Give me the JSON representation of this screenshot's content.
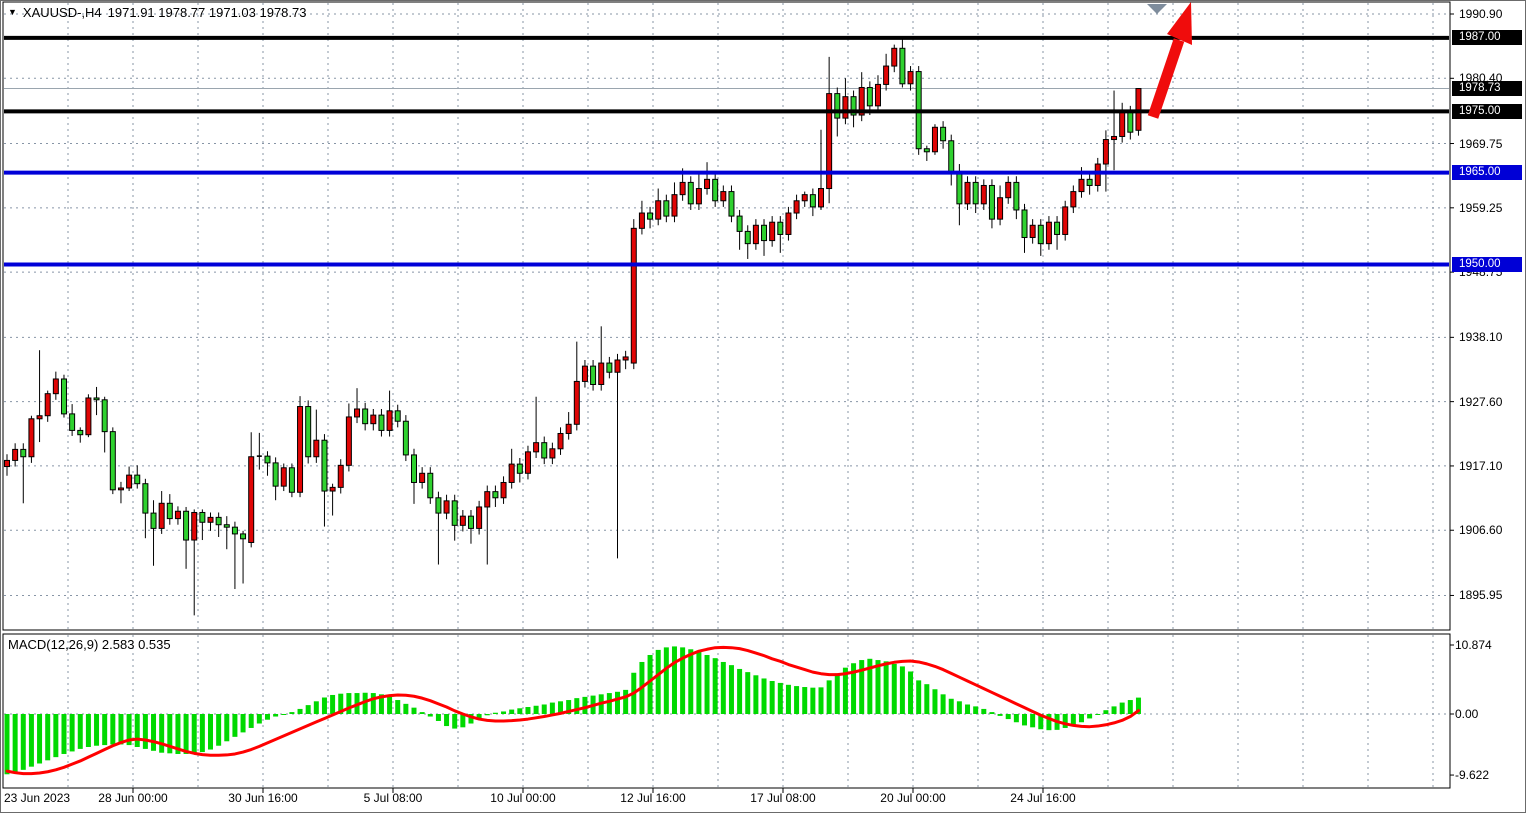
{
  "header": {
    "dropdown_icon": "down-triangle",
    "symbol_period": "XAUUSD-,H4",
    "ohlc_text": "1971.91 1978.77 1971.03 1978.73"
  },
  "macd_panel": {
    "label": "MACD(12,26,9) 2.583 0.535",
    "axis_tick_labels": [
      "10.874",
      "0.00",
      "-9.622"
    ]
  },
  "price_axis": {
    "badges": [
      {
        "label": "1987.00",
        "value": 1987.0,
        "bg": "#000000"
      },
      {
        "label": "1978.73",
        "value": 1978.73,
        "bg": "#000000"
      },
      {
        "label": "1975.00",
        "value": 1975.0,
        "bg": "#000000"
      },
      {
        "label": "1965.00",
        "value": 1965.0,
        "bg": "#0000d6"
      },
      {
        "label": "1950.00",
        "value": 1950.0,
        "bg": "#0000d6"
      }
    ]
  },
  "colors": {
    "up_candle": "#e00505",
    "down_candle": "#2fd12f",
    "candle_border": "#000000",
    "grid": "#8795a6",
    "macd_hist": "#00d900",
    "macd_signal": "#ff0000",
    "black_level": "#000000",
    "blue_level": "#0000d8",
    "bid_line": "#9aa5ae",
    "arrow": "#f00c0c",
    "shift_marker": "#7e8c9c"
  },
  "chart_data": [
    {
      "type": "candlestick",
      "title": "XAUUSD-,H4",
      "last_ohlc": {
        "open": 1971.91,
        "high": 1978.77,
        "low": 1971.03,
        "close": 1978.73
      },
      "y_ticks": [
        1990.9,
        1980.4,
        1969.75,
        1959.25,
        1948.75,
        1938.1,
        1927.6,
        1917.1,
        1906.6,
        1895.95
      ],
      "x_tick_labels": [
        "23 Jun 2023",
        "28 Jun 00:00",
        "30 Jun 16:00",
        "5 Jul 08:00",
        "10 Jul 00:00",
        "12 Jul 16:00",
        "17 Jul 08:00",
        "20 Jul 00:00",
        "24 Jul 16:00"
      ],
      "hlines": [
        {
          "value": 1987.0,
          "color": "#000000"
        },
        {
          "value": 1975.0,
          "color": "#000000"
        },
        {
          "value": 1965.0,
          "color": "#0000d8"
        },
        {
          "value": 1950.0,
          "color": "#0000d8"
        }
      ],
      "current_price": 1978.73,
      "annotations": [
        {
          "type": "up-arrow",
          "color": "#f00c0c"
        }
      ],
      "candles": [
        [
          1917.0,
          1919.0,
          1915.5,
          1918.0
        ],
        [
          1918.0,
          1920.8,
          1917.0,
          1919.8
        ],
        [
          1919.8,
          1920.8,
          1911.0,
          1918.6
        ],
        [
          1918.6,
          1925.3,
          1917.6,
          1924.8
        ],
        [
          1924.8,
          1936.0,
          1921.0,
          1925.3
        ],
        [
          1925.3,
          1929.4,
          1924.3,
          1928.9
        ],
        [
          1928.9,
          1932.5,
          1927.9,
          1931.3
        ],
        [
          1931.3,
          1932.0,
          1925.0,
          1925.6
        ],
        [
          1925.6,
          1927.2,
          1922.0,
          1922.9
        ],
        [
          1922.9,
          1923.4,
          1920.9,
          1922.2
        ],
        [
          1922.2,
          1928.8,
          1921.8,
          1928.2
        ],
        [
          1928.2,
          1930.0,
          1925.4,
          1927.9
        ],
        [
          1927.9,
          1928.4,
          1919.3,
          1922.7
        ],
        [
          1922.7,
          1923.4,
          1912.5,
          1913.2
        ],
        [
          1913.2,
          1914.5,
          1911.0,
          1913.5
        ],
        [
          1913.5,
          1917.0,
          1913.0,
          1915.6
        ],
        [
          1915.6,
          1917.2,
          1913.4,
          1914.2
        ],
        [
          1914.2,
          1915.0,
          1905.3,
          1909.4
        ],
        [
          1909.4,
          1911.5,
          1900.8,
          1906.9
        ],
        [
          1906.9,
          1913.0,
          1906.0,
          1911.0
        ],
        [
          1911.0,
          1912.5,
          1907.5,
          1908.5
        ],
        [
          1908.5,
          1910.5,
          1907.5,
          1909.7
        ],
        [
          1909.7,
          1910.4,
          1900.3,
          1905.0
        ],
        [
          1905.0,
          1910.0,
          1892.7,
          1909.5
        ],
        [
          1909.5,
          1910.0,
          1905.0,
          1907.9
        ],
        [
          1907.9,
          1909.5,
          1906.5,
          1908.7
        ],
        [
          1908.7,
          1909.5,
          1905.5,
          1907.5
        ],
        [
          1907.5,
          1908.9,
          1903.5,
          1907.1
        ],
        [
          1907.1,
          1908.0,
          1897.0,
          1906.0
        ],
        [
          1906.0,
          1906.5,
          1897.9,
          1905.2
        ],
        [
          1904.6,
          1922.6,
          1903.8,
          1918.6
        ],
        [
          1918.6,
          1922.5,
          1916.5,
          1918.7
        ],
        [
          1918.7,
          1919.5,
          1915.5,
          1917.6
        ],
        [
          1917.6,
          1918.5,
          1911.5,
          1913.8
        ],
        [
          1913.8,
          1917.5,
          1913.0,
          1916.8
        ],
        [
          1916.8,
          1917.5,
          1912.0,
          1912.8
        ],
        [
          1912.8,
          1928.5,
          1912.0,
          1926.8
        ],
        [
          1926.8,
          1927.8,
          1917.5,
          1918.6
        ],
        [
          1918.6,
          1926.3,
          1917.6,
          1921.3
        ],
        [
          1921.3,
          1922.3,
          1907.2,
          1913.0
        ],
        [
          1913.0,
          1914.2,
          1909.0,
          1913.6
        ],
        [
          1913.6,
          1918.2,
          1912.6,
          1917.2
        ],
        [
          1917.2,
          1927.3,
          1916.2,
          1925.1
        ],
        [
          1925.1,
          1929.8,
          1924.1,
          1926.4
        ],
        [
          1926.4,
          1927.4,
          1922.9,
          1924.0
        ],
        [
          1924.0,
          1926.4,
          1922.9,
          1925.4
        ],
        [
          1925.4,
          1926.4,
          1921.9,
          1922.9
        ],
        [
          1922.9,
          1929.4,
          1921.9,
          1926.1
        ],
        [
          1926.1,
          1927.1,
          1923.4,
          1924.4
        ],
        [
          1924.4,
          1925.4,
          1917.9,
          1918.9
        ],
        [
          1918.9,
          1919.9,
          1910.9,
          1914.4
        ],
        [
          1914.4,
          1916.9,
          1913.4,
          1915.9
        ],
        [
          1915.9,
          1916.9,
          1910.9,
          1911.9
        ],
        [
          1911.9,
          1912.9,
          1901.0,
          1909.4
        ],
        [
          1909.4,
          1912.4,
          1908.4,
          1911.4
        ],
        [
          1911.4,
          1912.4,
          1904.9,
          1907.4
        ],
        [
          1907.4,
          1909.9,
          1906.4,
          1908.9
        ],
        [
          1908.9,
          1909.9,
          1904.4,
          1906.9
        ],
        [
          1906.9,
          1911.4,
          1905.9,
          1910.4
        ],
        [
          1910.4,
          1913.9,
          1901.0,
          1912.9
        ],
        [
          1912.9,
          1913.9,
          1910.4,
          1911.9
        ],
        [
          1911.9,
          1915.4,
          1910.9,
          1914.4
        ],
        [
          1914.4,
          1919.9,
          1913.4,
          1917.4
        ],
        [
          1917.4,
          1918.4,
          1914.4,
          1915.9
        ],
        [
          1915.9,
          1920.4,
          1914.9,
          1919.4
        ],
        [
          1919.4,
          1928.4,
          1918.4,
          1920.9
        ],
        [
          1920.9,
          1921.9,
          1917.4,
          1918.4
        ],
        [
          1918.4,
          1920.9,
          1917.4,
          1919.9
        ],
        [
          1919.9,
          1923.4,
          1918.9,
          1922.4
        ],
        [
          1922.4,
          1925.9,
          1921.4,
          1923.9
        ],
        [
          1923.9,
          1937.4,
          1922.9,
          1930.9
        ],
        [
          1930.9,
          1934.4,
          1929.9,
          1933.4
        ],
        [
          1933.4,
          1934.4,
          1929.4,
          1930.4
        ],
        [
          1930.4,
          1939.9,
          1929.4,
          1933.9
        ],
        [
          1933.9,
          1934.9,
          1931.4,
          1932.4
        ],
        [
          1932.4,
          1935.4,
          1902.0,
          1934.4
        ],
        [
          1934.4,
          1935.9,
          1932.9,
          1934.9
        ],
        [
          1933.9,
          1957.4,
          1932.9,
          1955.9
        ],
        [
          1955.9,
          1960.4,
          1954.9,
          1958.4
        ],
        [
          1958.4,
          1959.4,
          1955.9,
          1957.4
        ],
        [
          1957.4,
          1962.4,
          1956.4,
          1960.4
        ],
        [
          1960.4,
          1961.4,
          1956.9,
          1957.9
        ],
        [
          1957.9,
          1963.4,
          1956.9,
          1961.4
        ],
        [
          1961.4,
          1965.7,
          1960.4,
          1963.4
        ],
        [
          1963.4,
          1964.4,
          1958.9,
          1959.9
        ],
        [
          1959.9,
          1964.9,
          1958.9,
          1962.4
        ],
        [
          1962.4,
          1966.7,
          1961.4,
          1963.9
        ],
        [
          1963.9,
          1964.9,
          1959.4,
          1960.4
        ],
        [
          1960.4,
          1962.9,
          1959.4,
          1961.9
        ],
        [
          1961.9,
          1962.9,
          1956.9,
          1957.9
        ],
        [
          1957.9,
          1958.9,
          1952.4,
          1955.4
        ],
        [
          1955.4,
          1956.4,
          1950.9,
          1953.4
        ],
        [
          1953.4,
          1957.4,
          1952.4,
          1956.4
        ],
        [
          1956.4,
          1957.4,
          1951.4,
          1953.9
        ],
        [
          1953.9,
          1957.9,
          1952.9,
          1956.9
        ],
        [
          1956.9,
          1957.9,
          1951.9,
          1954.9
        ],
        [
          1954.9,
          1959.4,
          1953.9,
          1958.4
        ],
        [
          1958.4,
          1961.4,
          1957.4,
          1960.4
        ],
        [
          1960.4,
          1961.9,
          1959.4,
          1961.4
        ],
        [
          1961.4,
          1962.4,
          1957.9,
          1959.4
        ],
        [
          1959.4,
          1972.0,
          1958.9,
          1962.4
        ],
        [
          1962.4,
          1983.9,
          1960.0,
          1977.9
        ],
        [
          1977.9,
          1978.9,
          1970.9,
          1973.9
        ],
        [
          1973.9,
          1980.4,
          1972.9,
          1977.4
        ],
        [
          1977.4,
          1978.4,
          1972.4,
          1974.4
        ],
        [
          1974.4,
          1981.4,
          1973.4,
          1978.9
        ],
        [
          1978.9,
          1979.9,
          1974.4,
          1975.9
        ],
        [
          1975.9,
          1980.9,
          1974.9,
          1979.4
        ],
        [
          1979.4,
          1984.4,
          1978.4,
          1982.4
        ],
        [
          1982.4,
          1985.9,
          1981.4,
          1985.3
        ],
        [
          1985.3,
          1987.3,
          1978.9,
          1979.5
        ],
        [
          1979.5,
          1982.4,
          1978.4,
          1981.5
        ],
        [
          1981.5,
          1982.4,
          1967.9,
          1968.9
        ],
        [
          1968.9,
          1969.4,
          1966.9,
          1968.4
        ],
        [
          1968.4,
          1972.9,
          1967.9,
          1972.4
        ],
        [
          1972.4,
          1973.4,
          1968.9,
          1970.2
        ],
        [
          1970.2,
          1971.2,
          1962.9,
          1964.8
        ],
        [
          1964.8,
          1966.4,
          1956.4,
          1959.9
        ],
        [
          1959.9,
          1964.4,
          1958.9,
          1963.4
        ],
        [
          1963.4,
          1964.4,
          1958.4,
          1959.9
        ],
        [
          1959.9,
          1963.9,
          1958.9,
          1962.9
        ],
        [
          1962.9,
          1963.9,
          1955.9,
          1957.4
        ],
        [
          1957.4,
          1962.9,
          1956.4,
          1960.9
        ],
        [
          1960.9,
          1964.4,
          1959.9,
          1963.4
        ],
        [
          1963.4,
          1964.4,
          1957.4,
          1958.9
        ],
        [
          1958.9,
          1959.9,
          1951.9,
          1954.4
        ],
        [
          1954.4,
          1957.4,
          1953.4,
          1956.4
        ],
        [
          1956.4,
          1957.4,
          1951.4,
          1953.4
        ],
        [
          1953.4,
          1957.9,
          1952.4,
          1956.9
        ],
        [
          1956.9,
          1957.9,
          1952.4,
          1954.9
        ],
        [
          1954.9,
          1960.4,
          1953.9,
          1959.4
        ],
        [
          1959.4,
          1962.9,
          1958.4,
          1961.9
        ],
        [
          1961.9,
          1965.9,
          1960.9,
          1963.9
        ],
        [
          1963.9,
          1964.9,
          1961.4,
          1962.9
        ],
        [
          1962.9,
          1967.4,
          1961.9,
          1966.4
        ],
        [
          1966.4,
          1971.9,
          1961.9,
          1970.4
        ],
        [
          1970.4,
          1978.4,
          1965.4,
          1970.9
        ],
        [
          1970.9,
          1976.4,
          1969.9,
          1974.9
        ],
        [
          1974.9,
          1975.9,
          1970.4,
          1971.6
        ],
        [
          1971.91,
          1978.77,
          1971.03,
          1978.73
        ]
      ]
    },
    {
      "type": "bar+line",
      "title": "MACD(12,26,9)",
      "current_values": [
        2.583,
        0.535
      ],
      "y_ticks": [
        10.874,
        0.0,
        -9.622
      ],
      "histogram": [
        -9.5,
        -9.2,
        -8.8,
        -8.3,
        -7.8,
        -7.3,
        -6.8,
        -6.3,
        -5.9,
        -5.5,
        -5.2,
        -5.0,
        -4.9,
        -4.8,
        -4.8,
        -4.9,
        -5.2,
        -5.5,
        -5.8,
        -6.1,
        -6.2,
        -6.3,
        -6.3,
        -6.2,
        -6.0,
        -5.6,
        -5.0,
        -4.3,
        -3.6,
        -2.9,
        -2.2,
        -1.5,
        -0.9,
        -0.4,
        -0.1,
        0.3,
        0.8,
        1.4,
        2.0,
        2.6,
        3.0,
        3.2,
        3.3,
        3.3,
        3.35,
        3.3,
        3.1,
        2.7,
        2.2,
        1.6,
        1.0,
        0.3,
        -0.4,
        -1.1,
        -1.9,
        -2.3,
        -2.1,
        -1.5,
        -0.8,
        -0.2,
        0.2,
        0.4,
        0.7,
        0.9,
        1.1,
        1.3,
        1.5,
        1.8,
        2.0,
        2.2,
        2.5,
        2.7,
        2.9,
        3.1,
        3.3,
        3.5,
        3.8,
        6.5,
        8.2,
        9.3,
        10.1,
        10.5,
        10.65,
        10.5,
        10.2,
        9.8,
        9.3,
        8.8,
        8.2,
        7.7,
        7.1,
        6.6,
        6.1,
        5.6,
        5.2,
        4.9,
        4.6,
        4.4,
        4.25,
        4.15,
        4.2,
        5.3,
        6.4,
        7.3,
        8.0,
        8.5,
        8.7,
        8.5,
        8.3,
        7.9,
        7.5,
        6.7,
        5.3,
        4.7,
        3.9,
        3.1,
        2.4,
        2.0,
        1.5,
        1.2,
        0.8,
        0.3,
        -0.3,
        -0.8,
        -1.3,
        -1.8,
        -2.1,
        -2.4,
        -2.55,
        -2.5,
        -2.2,
        -1.8,
        -1.3,
        -0.7,
        -0.1,
        0.6,
        1.2,
        1.8,
        2.2,
        2.583
      ],
      "signal": [
        -9.0,
        -9.25,
        -9.4,
        -9.4,
        -9.3,
        -9.1,
        -8.8,
        -8.4,
        -7.9,
        -7.4,
        -6.8,
        -6.2,
        -5.6,
        -5.0,
        -4.5,
        -4.1,
        -3.95,
        -4.1,
        -4.35,
        -4.7,
        -5.1,
        -5.5,
        -5.9,
        -6.2,
        -6.4,
        -6.5,
        -6.5,
        -6.45,
        -6.3,
        -6.0,
        -5.6,
        -5.1,
        -4.55,
        -4.0,
        -3.45,
        -2.9,
        -2.35,
        -1.8,
        -1.25,
        -0.7,
        -0.15,
        0.4,
        0.95,
        1.45,
        1.95,
        2.4,
        2.7,
        2.9,
        3.0,
        2.95,
        2.8,
        2.5,
        2.1,
        1.6,
        1.1,
        0.5,
        0.0,
        -0.45,
        -0.8,
        -1.0,
        -1.1,
        -1.1,
        -1.05,
        -0.95,
        -0.8,
        -0.6,
        -0.4,
        -0.15,
        0.1,
        0.4,
        0.7,
        1.0,
        1.35,
        1.7,
        2.0,
        2.35,
        2.7,
        3.3,
        4.2,
        5.2,
        6.2,
        7.2,
        8.1,
        8.8,
        9.4,
        9.9,
        10.2,
        10.45,
        10.5,
        10.45,
        10.3,
        10.0,
        9.6,
        9.2,
        8.7,
        8.3,
        7.8,
        7.4,
        7.0,
        6.6,
        6.35,
        6.2,
        6.2,
        6.35,
        6.6,
        6.9,
        7.25,
        7.6,
        7.9,
        8.15,
        8.3,
        8.35,
        8.2,
        7.9,
        7.5,
        7.0,
        6.4,
        5.8,
        5.2,
        4.6,
        4.0,
        3.4,
        2.8,
        2.2,
        1.6,
        1.0,
        0.4,
        -0.2,
        -0.7,
        -1.2,
        -1.55,
        -1.8,
        -1.95,
        -2.0,
        -1.9,
        -1.7,
        -1.4,
        -1.0,
        -0.4,
        0.535
      ]
    }
  ]
}
